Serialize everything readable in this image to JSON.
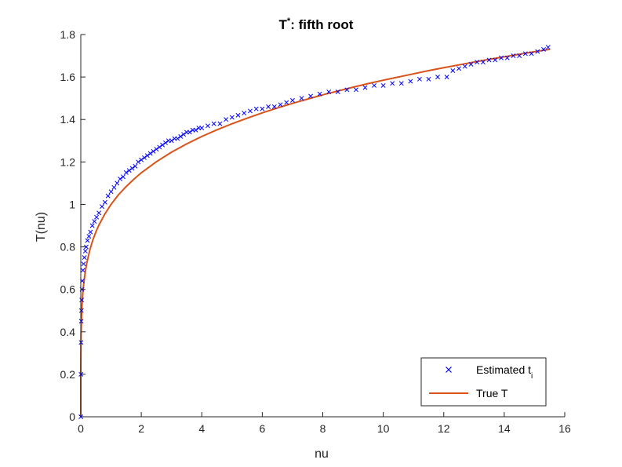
{
  "chart_data": {
    "type": "scatter",
    "title": "T",
    "title_superscript": "*",
    "title_suffix": ": fifth root",
    "xlabel": "nu",
    "ylabel": "T(nu)",
    "xlim": [
      0,
      16
    ],
    "ylim": [
      0,
      1.8
    ],
    "x_ticks": [
      0,
      2,
      4,
      6,
      8,
      10,
      12,
      14,
      16
    ],
    "y_ticks": [
      0,
      0.2,
      0.4,
      0.6,
      0.8,
      1,
      1.2,
      1.4,
      1.6,
      1.8
    ],
    "grid": false,
    "legend_position": "bottom-right",
    "colors": {
      "estimated": "#0000ff",
      "true": "#d95319",
      "axis": "#262626"
    },
    "series": [
      {
        "name": "Estimated t",
        "name_subscript": "i",
        "marker": "x",
        "x": [
          0.003,
          0.006,
          0.01,
          0.015,
          0.02,
          0.03,
          0.04,
          0.05,
          0.07,
          0.09,
          0.12,
          0.15,
          0.18,
          0.22,
          0.27,
          0.32,
          0.38,
          0.45,
          0.52,
          0.6,
          0.7,
          0.8,
          0.9,
          1.0,
          1.1,
          1.2,
          1.3,
          1.4,
          1.5,
          1.6,
          1.7,
          1.8,
          1.9,
          2.0,
          2.1,
          2.2,
          2.3,
          2.4,
          2.5,
          2.6,
          2.7,
          2.8,
          2.9,
          3.0,
          3.1,
          3.2,
          3.3,
          3.4,
          3.5,
          3.6,
          3.7,
          3.8,
          3.9,
          4.0,
          4.2,
          4.4,
          4.6,
          4.8,
          5.0,
          5.2,
          5.4,
          5.6,
          5.8,
          6.0,
          6.2,
          6.4,
          6.6,
          6.8,
          7.0,
          7.3,
          7.6,
          7.9,
          8.2,
          8.5,
          8.8,
          9.1,
          9.4,
          9.7,
          10.0,
          10.3,
          10.6,
          10.9,
          11.2,
          11.5,
          11.8,
          12.1,
          12.3,
          12.5,
          12.7,
          12.9,
          13.1,
          13.3,
          13.5,
          13.7,
          13.9,
          14.1,
          14.3,
          14.5,
          14.7,
          14.9,
          15.1,
          15.3,
          15.45
        ],
        "y": [
          0.0,
          0.2,
          0.35,
          0.45,
          0.5,
          0.55,
          0.6,
          0.64,
          0.69,
          0.72,
          0.75,
          0.78,
          0.8,
          0.83,
          0.85,
          0.87,
          0.9,
          0.92,
          0.94,
          0.96,
          0.99,
          1.01,
          1.04,
          1.06,
          1.08,
          1.1,
          1.12,
          1.13,
          1.15,
          1.16,
          1.17,
          1.18,
          1.2,
          1.21,
          1.22,
          1.23,
          1.24,
          1.25,
          1.26,
          1.27,
          1.28,
          1.29,
          1.3,
          1.3,
          1.31,
          1.31,
          1.32,
          1.33,
          1.34,
          1.34,
          1.35,
          1.35,
          1.36,
          1.36,
          1.37,
          1.38,
          1.38,
          1.4,
          1.41,
          1.42,
          1.43,
          1.44,
          1.45,
          1.45,
          1.46,
          1.46,
          1.47,
          1.48,
          1.49,
          1.5,
          1.51,
          1.52,
          1.53,
          1.53,
          1.54,
          1.54,
          1.55,
          1.56,
          1.56,
          1.57,
          1.57,
          1.58,
          1.59,
          1.59,
          1.6,
          1.6,
          1.63,
          1.64,
          1.65,
          1.66,
          1.67,
          1.67,
          1.68,
          1.68,
          1.69,
          1.69,
          1.7,
          1.7,
          1.71,
          1.71,
          1.72,
          1.73,
          1.74
        ]
      },
      {
        "name": "True T",
        "marker": "line",
        "x": [
          0,
          1e-05,
          0.0001,
          0.001,
          0.005,
          0.01,
          0.02,
          0.04,
          0.07,
          0.1,
          0.15,
          0.2,
          0.3,
          0.4,
          0.5,
          0.6,
          0.8,
          1.0,
          1.25,
          1.5,
          1.75,
          2.0,
          2.5,
          3.0,
          3.5,
          4.0,
          4.5,
          5.0,
          5.5,
          6.0,
          6.5,
          7.0,
          7.5,
          8.0,
          8.5,
          9.0,
          9.5,
          10.0,
          10.5,
          11.0,
          11.5,
          12.0,
          12.5,
          13.0,
          13.5,
          14.0,
          14.5,
          15.0,
          15.5
        ],
        "y": [
          0,
          0.1,
          0.158,
          0.251,
          0.347,
          0.398,
          0.457,
          0.525,
          0.588,
          0.631,
          0.684,
          0.725,
          0.786,
          0.833,
          0.871,
          0.903,
          0.956,
          1.0,
          1.046,
          1.084,
          1.118,
          1.149,
          1.201,
          1.246,
          1.285,
          1.32,
          1.351,
          1.38,
          1.406,
          1.431,
          1.454,
          1.476,
          1.496,
          1.516,
          1.534,
          1.552,
          1.569,
          1.585,
          1.6,
          1.615,
          1.63,
          1.644,
          1.657,
          1.67,
          1.683,
          1.695,
          1.707,
          1.719,
          1.73
        ]
      }
    ]
  }
}
